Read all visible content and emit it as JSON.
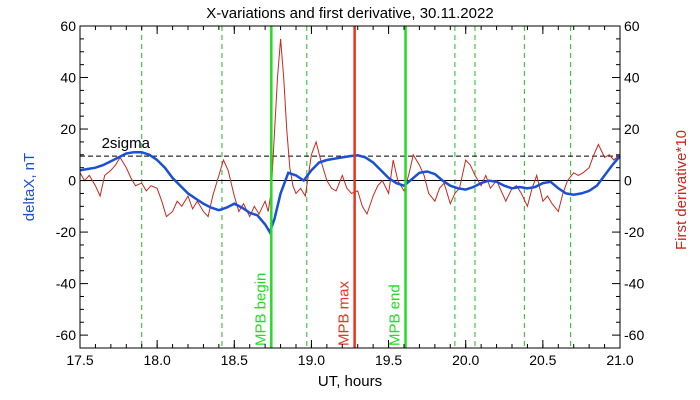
{
  "chart_data": {
    "type": "line",
    "title": "X-variations and first derivative, 30.11.2022",
    "xlabel": "UT, hours",
    "ylabel_left": "deltaX, nT",
    "ylabel_right": "First derivative*10",
    "xlim": [
      17.5,
      21.0
    ],
    "ylim": [
      -65,
      60
    ],
    "xticks": [
      17.5,
      18.0,
      18.5,
      19.0,
      19.5,
      20.0,
      20.5,
      21.0
    ],
    "xtick_labels": [
      "17.5",
      "18.0",
      "18.5",
      "19.0",
      "19.5",
      "20.0",
      "20.5",
      "21.0"
    ],
    "yticks": [
      -60,
      -40,
      -20,
      0,
      20,
      40,
      60
    ],
    "ytick_labels": [
      "-60",
      "-40",
      "-20",
      "0",
      "20",
      "40",
      "60"
    ],
    "colors": {
      "deltaX": "#1a4fd6",
      "derivative": "#c8281e",
      "mpb_edge": "#22dd22",
      "mpb_max": "#e8341c",
      "dashed": "#22bb22",
      "axis": "#000000"
    },
    "threshold": {
      "label": "2sigma",
      "value": 9.5
    },
    "series": [
      {
        "key": "deltaX",
        "x": [
          17.5,
          17.55,
          17.6,
          17.65,
          17.7,
          17.75,
          17.8,
          17.85,
          17.9,
          17.95,
          18.0,
          18.05,
          18.1,
          18.15,
          18.2,
          18.25,
          18.3,
          18.35,
          18.4,
          18.45,
          18.5,
          18.55,
          18.6,
          18.65,
          18.7,
          18.73,
          18.76,
          18.8,
          18.85,
          18.9,
          18.95,
          19.0,
          19.05,
          19.1,
          19.15,
          19.2,
          19.25,
          19.3,
          19.35,
          19.4,
          19.45,
          19.5,
          19.55,
          19.6,
          19.65,
          19.7,
          19.75,
          19.8,
          19.85,
          19.9,
          19.95,
          20.0,
          20.05,
          20.1,
          20.15,
          20.2,
          20.25,
          20.3,
          20.35,
          20.4,
          20.45,
          20.5,
          20.55,
          20.6,
          20.65,
          20.7,
          20.75,
          20.8,
          20.85,
          20.9,
          20.95,
          21.0
        ],
        "y": [
          4,
          4.5,
          5,
          6,
          7.5,
          9,
          10.5,
          11,
          11,
          10,
          8,
          5,
          1,
          -2,
          -5,
          -7,
          -9,
          -10.5,
          -11.5,
          -10.5,
          -9,
          -10.5,
          -12.5,
          -13.5,
          -17,
          -20,
          -15,
          -5,
          3,
          2,
          0,
          4,
          7,
          8,
          8.5,
          9,
          9.5,
          9.8,
          9,
          7,
          4,
          1,
          -1,
          -2,
          0.5,
          3,
          3.5,
          2.5,
          0,
          -2,
          -3,
          -3.5,
          -2.5,
          -1,
          0,
          -0.5,
          -2,
          -3,
          -2.5,
          -3,
          -2.5,
          -1,
          -0.5,
          -3,
          -5,
          -5.5,
          -5,
          -4,
          -2,
          2,
          6,
          9.5
        ]
      },
      {
        "key": "derivative",
        "x": [
          17.5,
          17.53,
          17.56,
          17.6,
          17.63,
          17.66,
          17.7,
          17.73,
          17.76,
          17.8,
          17.83,
          17.86,
          17.9,
          17.93,
          17.96,
          18.0,
          18.03,
          18.06,
          18.1,
          18.13,
          18.16,
          18.2,
          18.23,
          18.26,
          18.3,
          18.33,
          18.36,
          18.4,
          18.43,
          18.46,
          18.5,
          18.53,
          18.56,
          18.6,
          18.63,
          18.66,
          18.7,
          18.72,
          18.74,
          18.76,
          18.78,
          18.8,
          18.82,
          18.84,
          18.86,
          18.88,
          18.9,
          18.93,
          18.96,
          19.0,
          19.03,
          19.06,
          19.1,
          19.13,
          19.16,
          19.2,
          19.23,
          19.26,
          19.3,
          19.33,
          19.36,
          19.4,
          19.43,
          19.46,
          19.5,
          19.53,
          19.56,
          19.6,
          19.63,
          19.66,
          19.7,
          19.73,
          19.76,
          19.8,
          19.83,
          19.86,
          19.9,
          19.93,
          19.96,
          20.0,
          20.03,
          20.06,
          20.1,
          20.13,
          20.16,
          20.2,
          20.23,
          20.26,
          20.3,
          20.33,
          20.36,
          20.4,
          20.43,
          20.46,
          20.5,
          20.53,
          20.56,
          20.6,
          20.63,
          20.66,
          20.7,
          20.73,
          20.76,
          20.8,
          20.83,
          20.86,
          20.9,
          20.93,
          20.96,
          21.0
        ],
        "y": [
          3,
          0,
          2,
          -2,
          -6,
          2,
          4,
          6,
          9,
          5,
          1,
          -2,
          -1,
          -4,
          -2,
          -3,
          -8,
          -14,
          -12,
          -8,
          -10,
          -6,
          -11,
          -8,
          -12,
          -14,
          -6,
          2,
          8,
          4,
          -6,
          -12,
          -9,
          -14,
          -10,
          -13,
          -8,
          -12,
          -4,
          18,
          40,
          55,
          40,
          20,
          5,
          -2,
          -5,
          -3,
          -6,
          10,
          15,
          8,
          0,
          -3,
          -4,
          2,
          -3,
          -5,
          -4,
          -10,
          -13,
          -6,
          -2,
          0,
          -5,
          8,
          0,
          -4,
          2,
          10,
          6,
          2,
          -5,
          -8,
          -3,
          -1,
          -9,
          -5,
          -3,
          8,
          6,
          2,
          -2,
          2,
          -3,
          0,
          -4,
          -8,
          -3,
          -2,
          -5,
          -10,
          -3,
          2,
          -8,
          -6,
          -9,
          -12,
          -5,
          0,
          3,
          2,
          3,
          5,
          10,
          14,
          9,
          10,
          8,
          10
        ]
      }
    ],
    "vertical_lines": {
      "dashed_x": [
        17.9,
        18.42,
        18.97,
        19.93,
        20.06,
        20.38,
        20.68
      ],
      "mpb": [
        {
          "key": "begin",
          "x": 18.74,
          "label": "MPB begin"
        },
        {
          "key": "max",
          "x": 19.28,
          "label": "MPB max"
        },
        {
          "key": "end",
          "x": 19.61,
          "label": "MPB end"
        }
      ]
    }
  }
}
